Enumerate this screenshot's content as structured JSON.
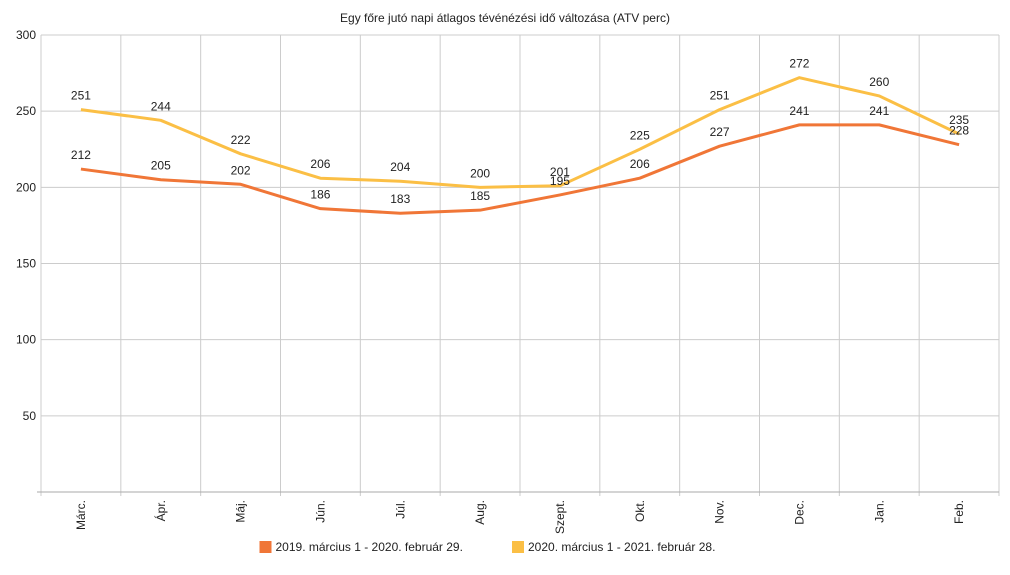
{
  "chart_data": {
    "type": "line",
    "title": "Egy főre jutó napi átlagos tévénézési idő változása (ATV perc)",
    "categories": [
      "Márc.",
      "Ápr.",
      "Máj.",
      "Jún.",
      "Júl.",
      "Aug.",
      "Szept.",
      "Okt.",
      "Nov.",
      "Dec.",
      "Jan.",
      "Feb."
    ],
    "ylim": [
      0,
      300
    ],
    "yticks": [
      50,
      100,
      150,
      200,
      250,
      300
    ],
    "grid": true,
    "legend_position": "bottom",
    "series": [
      {
        "name": "2019. március 1 - 2020. február 29.",
        "color": "#f07637",
        "values": [
          212,
          205,
          202,
          186,
          183,
          185,
          195,
          206,
          227,
          241,
          241,
          228
        ]
      },
      {
        "name": "2020. március 1 - 2021. február 28.",
        "color": "#fbbf45",
        "values": [
          251,
          244,
          222,
          206,
          204,
          200,
          201,
          225,
          251,
          272,
          260,
          235
        ]
      }
    ]
  }
}
